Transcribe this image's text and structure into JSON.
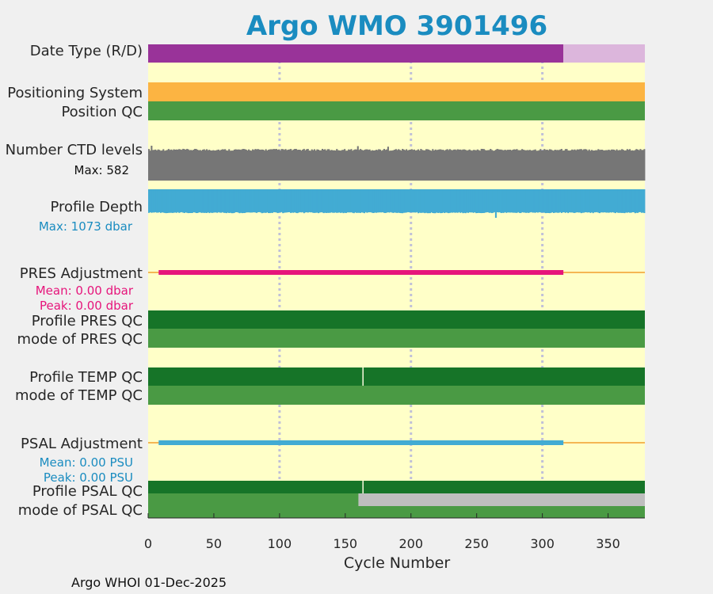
{
  "chart_data": {
    "type": "bar",
    "title": "Argo WMO 3901496",
    "xlabel": "Cycle Number",
    "xlim": [
      0,
      378
    ],
    "xticks": [
      0,
      50,
      100,
      150,
      200,
      250,
      300,
      350
    ],
    "grid_x": [
      100,
      200,
      300
    ],
    "footer": "Argo WHOI 01-Dec-2025",
    "colors": {
      "background": "#ffffc8",
      "title": "#1a8cc0",
      "realtime": "#993399",
      "delayed": "#dcb6dc",
      "positioning": "#fcb442",
      "qc_good": "#4a9a44",
      "qc_profile": "#167428",
      "levels": "#767676",
      "depth": "#42abd3",
      "pres": "#e6157b",
      "psal": "#42abd3",
      "adjust_line": "#f5b654",
      "qc_missing": "#bebebe",
      "grid": "#c0c0d8"
    },
    "rows": {
      "date_type": {
        "label": "Date Type (R/D)",
        "segments": [
          {
            "from": 0,
            "to": 316,
            "status": "realtime"
          },
          {
            "from": 316,
            "to": 378,
            "status": "delayed"
          }
        ]
      },
      "positioning_system": {
        "label": "Positioning System",
        "segments": [
          {
            "from": 0,
            "to": 378
          }
        ]
      },
      "position_qc": {
        "label": "Position QC",
        "segments": [
          {
            "from": 0,
            "to": 378
          }
        ]
      },
      "ctd_levels": {
        "label": "Number CTD levels",
        "max_text": "Max: 582",
        "max": 582,
        "typical": 530,
        "spikes": [
          [
            3,
            582
          ],
          [
            160,
            575
          ],
          [
            183,
            566
          ]
        ]
      },
      "profile_depth": {
        "label": "Profile Depth",
        "max_text": "Max: 1073 dbar",
        "max": 1073,
        "typical": 1000,
        "spikes": [
          [
            265,
            1073
          ]
        ]
      },
      "pres_adjustment": {
        "label": "PRES Adjustment",
        "mean_text": "Mean: 0.00 dbar",
        "peak_text": "Peak: 0.00 dbar",
        "adjusted_range": [
          8,
          316
        ],
        "line_range": [
          0,
          378
        ]
      },
      "profile_pres_qc": {
        "label": "Profile PRES QC",
        "segments": [
          {
            "from": 0,
            "to": 378
          }
        ]
      },
      "mode_pres_qc": {
        "label": "mode of PRES QC",
        "segments": [
          {
            "from": 0,
            "to": 378
          }
        ]
      },
      "profile_temp_qc": {
        "label": "Profile TEMP QC",
        "segments": [
          {
            "from": 0,
            "to": 163
          },
          {
            "from": 164,
            "to": 378
          }
        ]
      },
      "mode_temp_qc": {
        "label": "mode of TEMP QC",
        "segments": [
          {
            "from": 0,
            "to": 378
          }
        ]
      },
      "psal_adjustment": {
        "label": "PSAL Adjustment",
        "mean_text": "Mean: 0.00 PSU",
        "peak_text": "Peak: 0.00 PSU",
        "adjusted_range": [
          8,
          316
        ],
        "line_range": [
          0,
          378
        ]
      },
      "profile_psal_qc": {
        "label": "Profile PSAL QC",
        "segments": [
          {
            "from": 0,
            "to": 163
          },
          {
            "from": 164,
            "to": 378
          }
        ]
      },
      "mode_psal_qc": {
        "label": "mode of PSAL QC",
        "segments": [
          {
            "from": 0,
            "to": 160,
            "status": "good"
          },
          {
            "from": 160,
            "to": 378,
            "status": "missing_top"
          }
        ]
      }
    }
  }
}
